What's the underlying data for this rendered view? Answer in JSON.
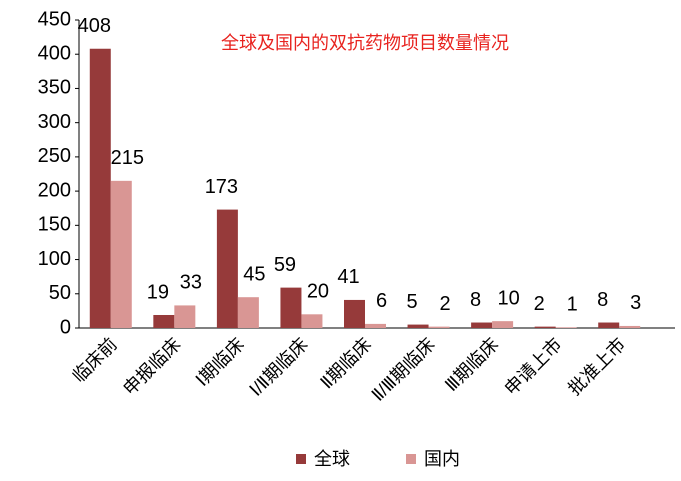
{
  "chart_data": {
    "type": "bar",
    "title": "全球及国内的双抗药物项目数量情况",
    "categories": [
      "临床前",
      "申报临床",
      "Ⅰ期临床",
      "Ⅰ/Ⅱ期临床",
      "Ⅱ期临床",
      "Ⅱ/Ⅲ期临床",
      "Ⅲ期临床",
      "申请上市",
      "批准上市"
    ],
    "series": [
      {
        "name": "全球",
        "color": "#963a3a",
        "values": [
          408,
          19,
          173,
          59,
          41,
          5,
          8,
          2,
          8
        ]
      },
      {
        "name": "国内",
        "color": "#d99694",
        "values": [
          215,
          33,
          45,
          20,
          6,
          2,
          10,
          1,
          3
        ]
      }
    ],
    "ylim": [
      0,
      450
    ],
    "yticks": [
      0,
      50,
      100,
      150,
      200,
      250,
      300,
      350,
      400,
      450
    ],
    "grid": false,
    "legend": "bottom"
  }
}
